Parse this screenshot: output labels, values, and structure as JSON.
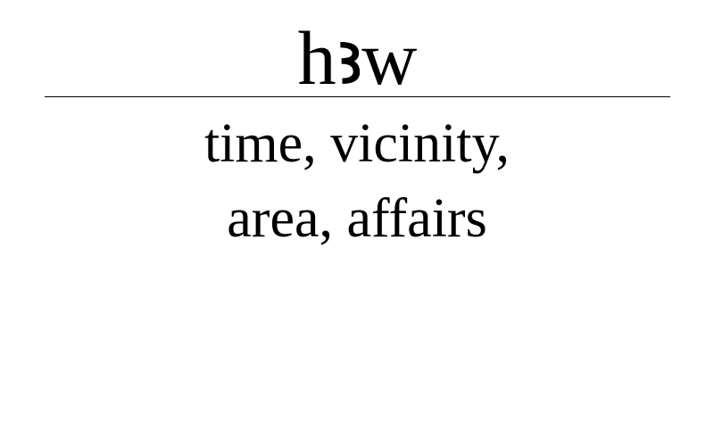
{
  "entry": {
    "headword": "hꜣw",
    "translation_lines": [
      "time, vicinity,",
      "area, affairs"
    ]
  },
  "colors": {
    "background": "#ffffff",
    "text": "#000000",
    "rule": "#000000"
  }
}
